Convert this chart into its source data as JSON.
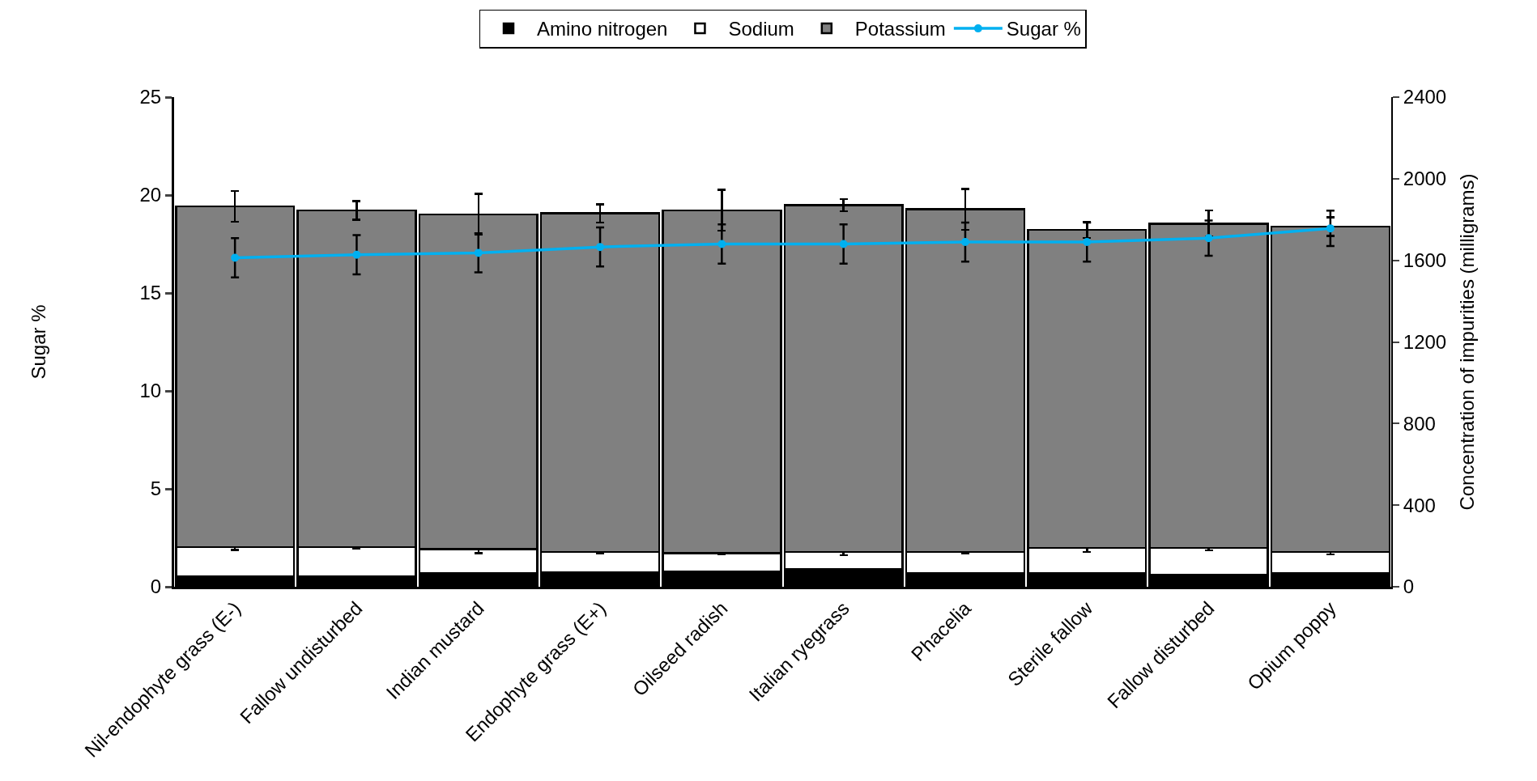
{
  "chart_data": {
    "type": "bar",
    "stacked": true,
    "categories": [
      "Nil-endophyte grass (E-)",
      "Fallow undisturbed",
      "Indian mustard",
      "Endophyte grass (E+)",
      "Oilseed radish",
      "Italian ryegrass",
      "Phacelia",
      "Sterile fallow",
      "Fallow disturbed",
      "Opium poppy"
    ],
    "ylabel": "Sugar %",
    "y2label": "Concentration of impurities (milligrams)",
    "ylim": [
      0,
      25
    ],
    "yticks": [
      0,
      5,
      10,
      15,
      20,
      25
    ],
    "y2lim": [
      0,
      2400
    ],
    "y2ticks": [
      0,
      400,
      800,
      1200,
      1600,
      2000,
      2400
    ],
    "legend": "top",
    "marker": "circle",
    "series": [
      {
        "name": "Amino nitrogen",
        "axis": "y2",
        "color": "#000000",
        "values": [
          50,
          50,
          65,
          70,
          75,
          85,
          65,
          65,
          60,
          65
        ]
      },
      {
        "name": "Sodium",
        "axis": "y2",
        "color": "#ffffff",
        "values": [
          145,
          145,
          120,
          100,
          90,
          85,
          105,
          125,
          130,
          105
        ],
        "errors": [
          15,
          8,
          20,
          8,
          5,
          15,
          5,
          20,
          12,
          12
        ]
      },
      {
        "name": "Potassium",
        "axis": "y2",
        "color": "#808080",
        "values": [
          1670,
          1650,
          1640,
          1660,
          1680,
          1700,
          1680,
          1560,
          1590,
          1595
        ],
        "errors": [
          75,
          45,
          100,
          45,
          100,
          30,
          100,
          40,
          65,
          45
        ]
      },
      {
        "name": "Sugar %",
        "type": "line",
        "color": "#00b0f0",
        "values": [
          16.8,
          16.95,
          17.05,
          17.35,
          17.5,
          17.5,
          17.6,
          17.6,
          17.8,
          18.3
        ],
        "errors": [
          1.0,
          1.0,
          1.0,
          1.0,
          1.0,
          1.0,
          1.0,
          1.0,
          0.9,
          0.9
        ]
      }
    ]
  }
}
